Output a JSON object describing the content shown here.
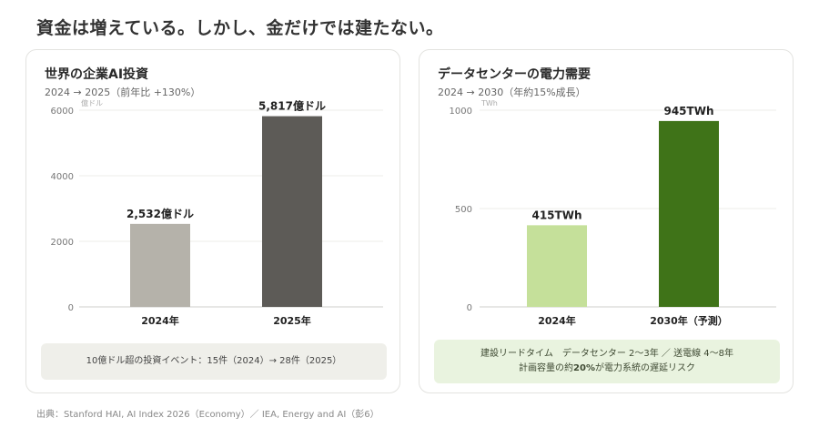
{
  "headline": "資金は増えている。しかし、金だけでは建たない。",
  "left_card": {
    "title": "世界の企業AI投資",
    "subtitle": "2024 → 2025（前年比 +130%）",
    "note": "10億ドル超の投資イベント：15件（2024）→ 28件（2025）"
  },
  "right_card": {
    "title": "データセンターの電力需要",
    "subtitle": "2024 → 2030（年約15%成長）",
    "note_line1": "建設リードタイム　データセンター 2〜3年 ／ 送電線 4〜8年",
    "note_line2_prefix": "計画容量の約",
    "note_line2_bold": "20%",
    "note_line2_suffix": "が電力系統の遅延リスク"
  },
  "source": "出典：Stanford HAI, AI Index 2026（Economy）／ IEA, Energy and AI（彭6）",
  "chart_data": [
    {
      "type": "bar",
      "categories": [
        "2024年",
        "2025年"
      ],
      "values": [
        2532,
        5817
      ],
      "data_labels": [
        "2,532億ドル",
        "5,817億ドル"
      ],
      "unit_label": "億ドル",
      "yticks": [
        0,
        2000,
        4000,
        6000
      ],
      "ylim": [
        0,
        6000
      ],
      "colors": [
        "#b5b2aa",
        "#5d5b57"
      ],
      "grid": true
    },
    {
      "type": "bar",
      "categories": [
        "2024年",
        "2030年（予測）"
      ],
      "values": [
        415,
        945
      ],
      "data_labels": [
        "415TWh",
        "945TWh"
      ],
      "unit_label": "TWh",
      "yticks": [
        0,
        500,
        1000
      ],
      "ylim": [
        0,
        1000
      ],
      "colors": [
        "#c5e09a",
        "#3f7318"
      ],
      "grid": true
    }
  ]
}
